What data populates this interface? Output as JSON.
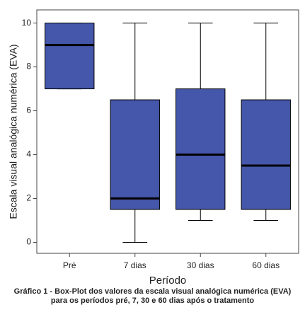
{
  "chart_data": {
    "type": "box",
    "categories": [
      "Pré",
      "7 dias",
      "30 dias",
      "60 dias"
    ],
    "min": [
      7,
      0,
      1,
      1
    ],
    "q1": [
      7,
      1.5,
      1.5,
      1.5
    ],
    "median": [
      9,
      2,
      4,
      3.5
    ],
    "q3": [
      10,
      6.5,
      7,
      6.5
    ],
    "max": [
      10,
      10,
      10,
      10
    ],
    "color": "#4557aa",
    "ylim": [
      -0.5,
      10.6
    ],
    "yticks": [
      0,
      2,
      4,
      6,
      8,
      10
    ],
    "xlabel": "Período",
    "ylabel": "Escala visual analógica numérica (EVA)",
    "caption": "Gráfico 1 - Box-Plot dos valores da escala visual analógica numérica (EVA) para os períodos pré, 7, 30 e 60 dias após o tratamento"
  }
}
